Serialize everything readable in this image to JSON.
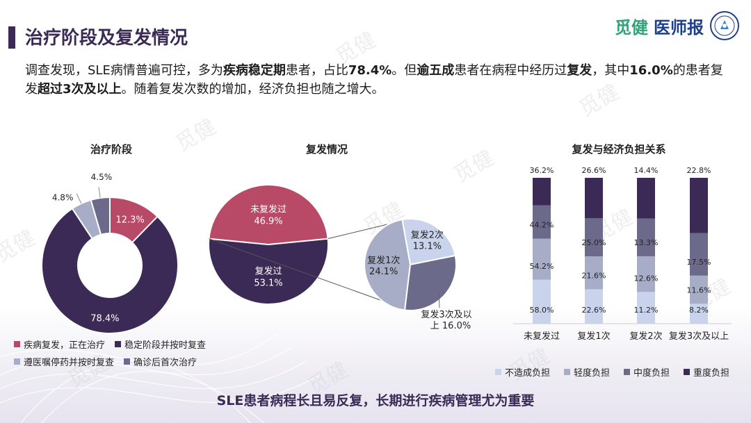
{
  "header": {
    "title": "治疗阶段及复发情况",
    "logo_text_1": "觅健",
    "logo_text_2": "医师报"
  },
  "watermark": "觅健",
  "summary": {
    "parts": [
      {
        "text": "调查发现，SLE病情普遍可控，多为",
        "bold": false
      },
      {
        "text": "疾病稳定期",
        "bold": true
      },
      {
        "text": "患者，占比",
        "bold": false
      },
      {
        "text": "78.4%",
        "bold": true
      },
      {
        "text": "。但",
        "bold": false
      },
      {
        "text": "逾五成",
        "bold": true
      },
      {
        "text": "患者在病程中经历过",
        "bold": false
      },
      {
        "text": "复发",
        "bold": true
      },
      {
        "text": "，其中",
        "bold": false
      },
      {
        "text": "16.0%",
        "bold": true
      },
      {
        "text": "的患者复发",
        "bold": false
      },
      {
        "text": "超过3次及以上",
        "bold": true
      },
      {
        "text": "。随着复发次数的增加，经济负担也随之增大。",
        "bold": false
      }
    ]
  },
  "footer": "SLE患者病程长且易反复，长期进行疾病管理尤为重要",
  "colors": {
    "dark_purple": "#3b2a55",
    "red": "#b84a68",
    "slate": "#6b6a8a",
    "light_slate": "#a7adc6",
    "pale_blue": "#c9d3ec"
  },
  "chart_data": [
    {
      "type": "pie",
      "variant": "donut",
      "title": "治疗阶段",
      "slices": [
        {
          "label": "疾病复发，正在治疗",
          "value": 12.3,
          "value_label": "12.3%",
          "color": "#b84a68"
        },
        {
          "label": "稳定阶段并按时复查",
          "value": 78.4,
          "value_label": "78.4%",
          "color": "#3b2a55"
        },
        {
          "label": "遵医嘱停药并按时复查",
          "value": 4.8,
          "value_label": "4.8%",
          "color": "#a7adc6"
        },
        {
          "label": "确诊后首次治疗",
          "value": 4.5,
          "value_label": "4.5%",
          "color": "#6b6a8a"
        }
      ],
      "legend_position": "bottom"
    },
    {
      "type": "pie",
      "variant": "pie-of-pie",
      "title": "复发情况",
      "slices": [
        {
          "label": "未复发过",
          "value": 46.9,
          "value_label": "46.9%",
          "color": "#b84a68"
        },
        {
          "label": "复发过",
          "value": 53.1,
          "value_label": "53.1%",
          "color": "#3b2a55"
        }
      ],
      "sub_pie": [
        {
          "label": "复发1次",
          "value": 24.1,
          "value_label": "24.1%",
          "color": "#a7adc6"
        },
        {
          "label": "复发2次",
          "value": 13.1,
          "value_label": "13.1%",
          "color": "#c9d3ec"
        },
        {
          "label": "复发3次及以上",
          "value": 16.0,
          "value_label": "16.0%",
          "color": "#6b6a8a"
        }
      ],
      "sub_label_3_line1": "复发3次及以",
      "sub_label_3_line2": "上 16.0%"
    },
    {
      "type": "bar",
      "variant": "stacked-100",
      "title": "复发与经济负担关系",
      "categories": [
        "未复发过",
        "复发1次",
        "复发2次",
        "复发3次及以上"
      ],
      "series": [
        {
          "name": "不造成负担",
          "values": [
            58.0,
            22.6,
            11.2,
            8.2
          ],
          "color": "#c9d3ec"
        },
        {
          "name": "轻度负担",
          "values": [
            54.2,
            21.6,
            12.6,
            11.6
          ],
          "color": "#a7adc6"
        },
        {
          "name": "中度负担",
          "values": [
            44.2,
            25.0,
            13.3,
            17.5
          ],
          "color": "#6b6a8a"
        },
        {
          "name": "重度负担",
          "values": [
            36.2,
            26.6,
            14.4,
            22.8
          ],
          "color": "#3b2a55"
        }
      ],
      "legend_position": "bottom"
    }
  ]
}
